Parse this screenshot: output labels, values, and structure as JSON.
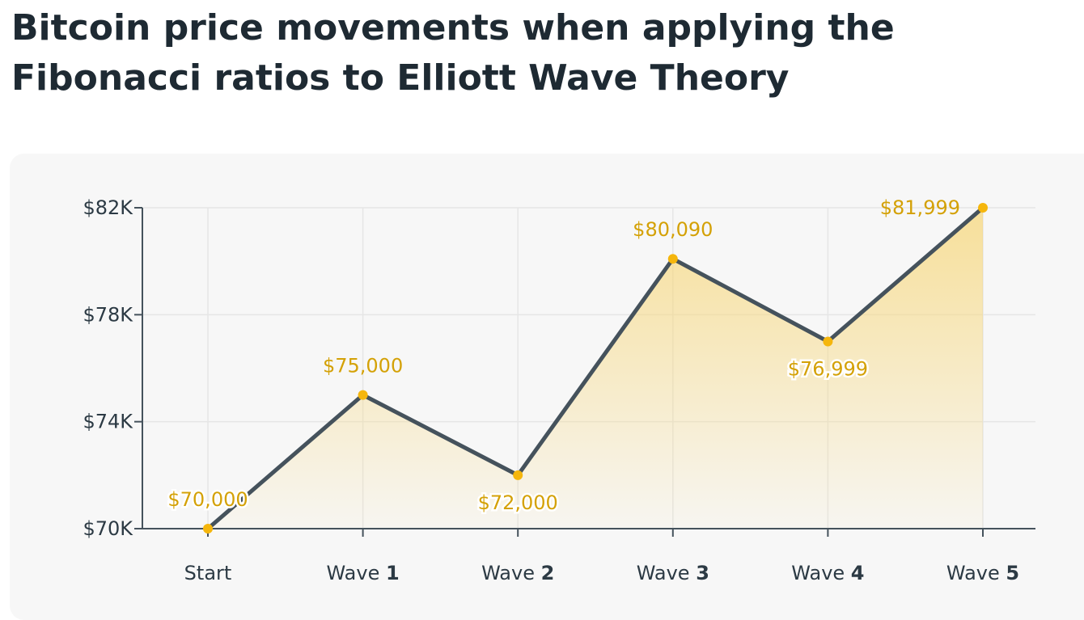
{
  "title": "Bitcoin price movements when applying the Fibonacci ratios to Elliott Wave Theory",
  "colors": {
    "line": "#45525c",
    "point": "#f5b60d",
    "label": "#d4a106",
    "fill": "#f7d77a",
    "axis": "#45525c",
    "grid": "#e6e6e6"
  },
  "chart_data": {
    "type": "area",
    "title": "Bitcoin price movements when applying the Fibonacci ratios to Elliott Wave Theory",
    "categories": [
      {
        "prefix": "",
        "bold": "Start"
      },
      {
        "prefix": "Wave ",
        "bold": "1"
      },
      {
        "prefix": "Wave ",
        "bold": "2"
      },
      {
        "prefix": "Wave ",
        "bold": "3"
      },
      {
        "prefix": "Wave ",
        "bold": "4"
      },
      {
        "prefix": "Wave ",
        "bold": "5"
      }
    ],
    "values": [
      70000,
      75000,
      72000,
      80090,
      76999,
      81999
    ],
    "value_labels": [
      "$70,000",
      "$75,000",
      "$72,000",
      "$80,090",
      "$76,999",
      "$81,999"
    ],
    "label_positions": [
      "above",
      "above",
      "below",
      "above",
      "below",
      "left"
    ],
    "ylim": [
      70000,
      82000
    ],
    "yticks": [
      70000,
      74000,
      78000,
      82000
    ],
    "ytick_labels": [
      "$70K",
      "$74K",
      "$78K",
      "$82K"
    ],
    "xlabel": "",
    "ylabel": "",
    "grid": true
  }
}
